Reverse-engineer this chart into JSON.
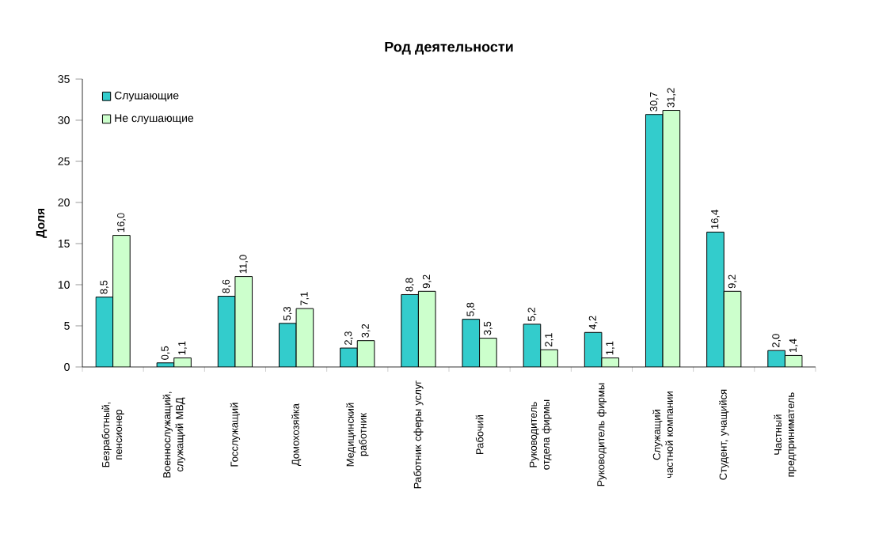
{
  "chart_data": {
    "type": "bar",
    "title": "Род деятельности",
    "ylabel": "Доля",
    "categories": [
      "Безработный, пенсионер",
      "Военнослужащий, служащий МВД",
      "Госслужащий",
      "Домохозяйка",
      "Медицинский работник",
      "Работник сферы услуг",
      "Рабочий",
      "Руководитель отдела фирмы",
      "Руководитель фирмы",
      "Служащий частной компании",
      "Студент, учащийся",
      "Частный предприниматель"
    ],
    "series": [
      {
        "name": "Слушающие",
        "color": "#33cccc",
        "values": [
          8.5,
          0.5,
          8.6,
          5.3,
          2.3,
          8.8,
          5.8,
          5.2,
          4.2,
          30.7,
          16.4,
          2.0
        ],
        "value_labels": [
          "8,5",
          "0,5",
          "8,6",
          "5,3",
          "2,3",
          "8,8",
          "5,8",
          "5,2",
          "4,2",
          "30,7",
          "16,4",
          "2,0"
        ]
      },
      {
        "name": "Не слушающие",
        "color": "#ccffcc",
        "values": [
          16.0,
          1.1,
          11.0,
          7.1,
          3.2,
          9.2,
          3.5,
          2.1,
          1.1,
          31.2,
          9.2,
          1.4
        ],
        "value_labels": [
          "16,0",
          "1,1",
          "11,0",
          "7,1",
          "3,2",
          "9,2",
          "3,5",
          "2,1",
          "1,1",
          "31,2",
          "9,2",
          "1,4"
        ]
      }
    ],
    "ylim": [
      0,
      35
    ],
    "yticks": [
      0,
      5,
      10,
      15,
      20,
      25,
      30,
      35
    ],
    "legend": "top left"
  }
}
